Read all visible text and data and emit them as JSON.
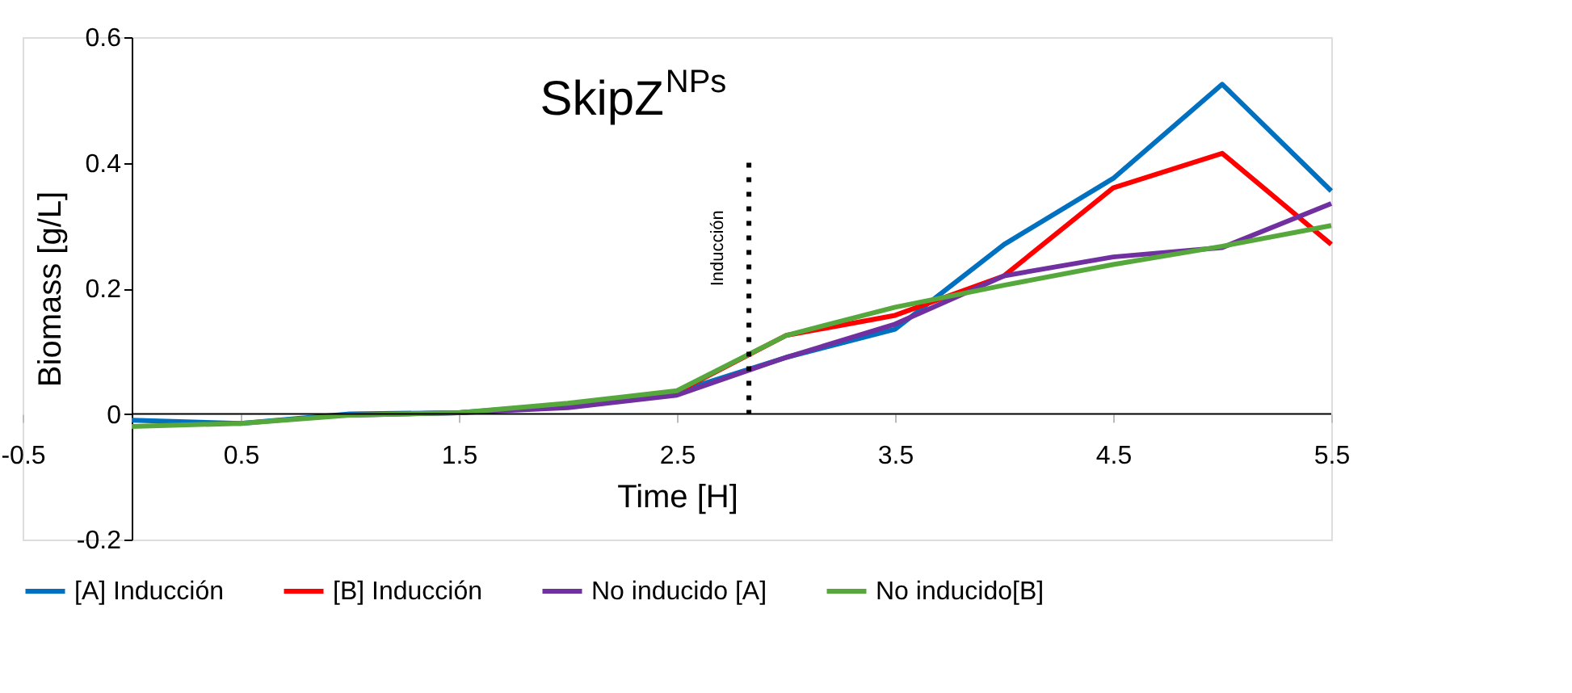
{
  "chart_data": {
    "type": "line",
    "title": "SkipZ$^{NPs}$",
    "xlabel": "Time [H]",
    "ylabel": "Biomass [g/L]",
    "x": [
      0,
      0.5,
      1,
      1.5,
      2,
      2.5,
      3,
      3.5,
      4,
      4.5,
      5,
      5.5
    ],
    "series": [
      {
        "name": "[A] Inducción",
        "color": "#0070c0",
        "values": [
          -0.01,
          -0.015,
          0,
          0.002,
          0.015,
          0.035,
          0.09,
          0.135,
          0.27,
          0.375,
          0.525,
          0.355
        ]
      },
      {
        "name": "[B] Inducción",
        "color": "#ff0000",
        "values": [
          null,
          null,
          null,
          null,
          null,
          0.035,
          0.125,
          0.157,
          0.22,
          0.36,
          0.415,
          0.27
        ]
      },
      {
        "name": "No inducido [A]",
        "color": "#7030a0",
        "values": [
          null,
          null,
          -0.002,
          0.002,
          0.01,
          0.03,
          0.09,
          0.143,
          0.22,
          0.25,
          0.265,
          0.335
        ]
      },
      {
        "name": "No inducido[B]",
        "color": "#56a83c",
        "values": [
          -0.02,
          -0.015,
          -0.002,
          0.002,
          0.017,
          0.037,
          0.125,
          0.17,
          0.205,
          0.238,
          0.267,
          0.3
        ]
      }
    ],
    "xlim": [
      -0.5,
      5.5
    ],
    "xticks": [
      -0.5,
      0.5,
      1.5,
      2.5,
      3.5,
      4.5,
      5.5
    ],
    "ylim": [
      -0.2,
      0.6
    ],
    "yticks": [
      -0.2,
      0,
      0.2,
      0.4,
      0.6
    ],
    "ref_lines": [
      {
        "axis": "x",
        "value": 2.83,
        "label": "Inducción",
        "line_style": "dotted",
        "color": "#000000"
      }
    ],
    "grid": false,
    "legend": "bottom",
    "marker": "none",
    "line_style": "solid"
  }
}
